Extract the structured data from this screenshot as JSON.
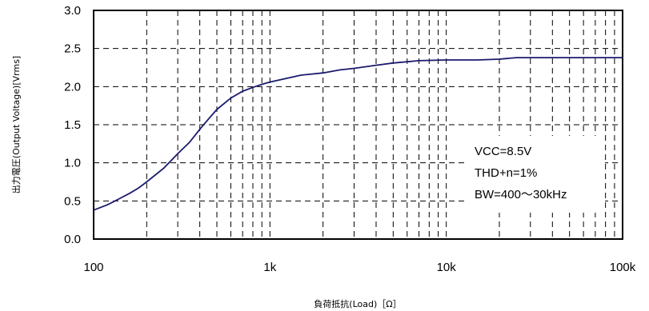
{
  "chart_data": {
    "type": "line",
    "title": "",
    "xlabel": "負荷抵抗(Load)［Ω］",
    "ylabel": "出力電圧(Output Voltage)[Vrms]",
    "xscale": "log",
    "xlim": [
      100,
      100000
    ],
    "ylim": [
      0,
      3.0
    ],
    "x_tick_labels": [
      "100",
      "1k",
      "10k",
      "100k"
    ],
    "y_tick_labels": [
      "0.0",
      "0.5",
      "1.0",
      "1.5",
      "2.0",
      "2.5",
      "3.0"
    ],
    "grid": true,
    "legend": "none",
    "series": [
      {
        "color": "#1a1a6e",
        "x": [
          100,
          120,
          140,
          160,
          180,
          200,
          250,
          300,
          350,
          400,
          450,
          500,
          600,
          700,
          800,
          900,
          1000,
          1200,
          1500,
          2000,
          2500,
          3000,
          4000,
          5000,
          7000,
          10000,
          15000,
          20000,
          25000,
          30000,
          50000,
          70000,
          100000
        ],
        "y": [
          0.38,
          0.45,
          0.53,
          0.6,
          0.67,
          0.75,
          0.93,
          1.12,
          1.27,
          1.44,
          1.58,
          1.7,
          1.85,
          1.94,
          1.99,
          2.03,
          2.06,
          2.1,
          2.15,
          2.18,
          2.22,
          2.24,
          2.28,
          2.31,
          2.34,
          2.35,
          2.35,
          2.36,
          2.38,
          2.38,
          2.38,
          2.38,
          2.38
        ]
      }
    ],
    "annotations": [
      "VCC=8.5V",
      "THD+n=1%",
      "BW=400～30kHz"
    ]
  }
}
